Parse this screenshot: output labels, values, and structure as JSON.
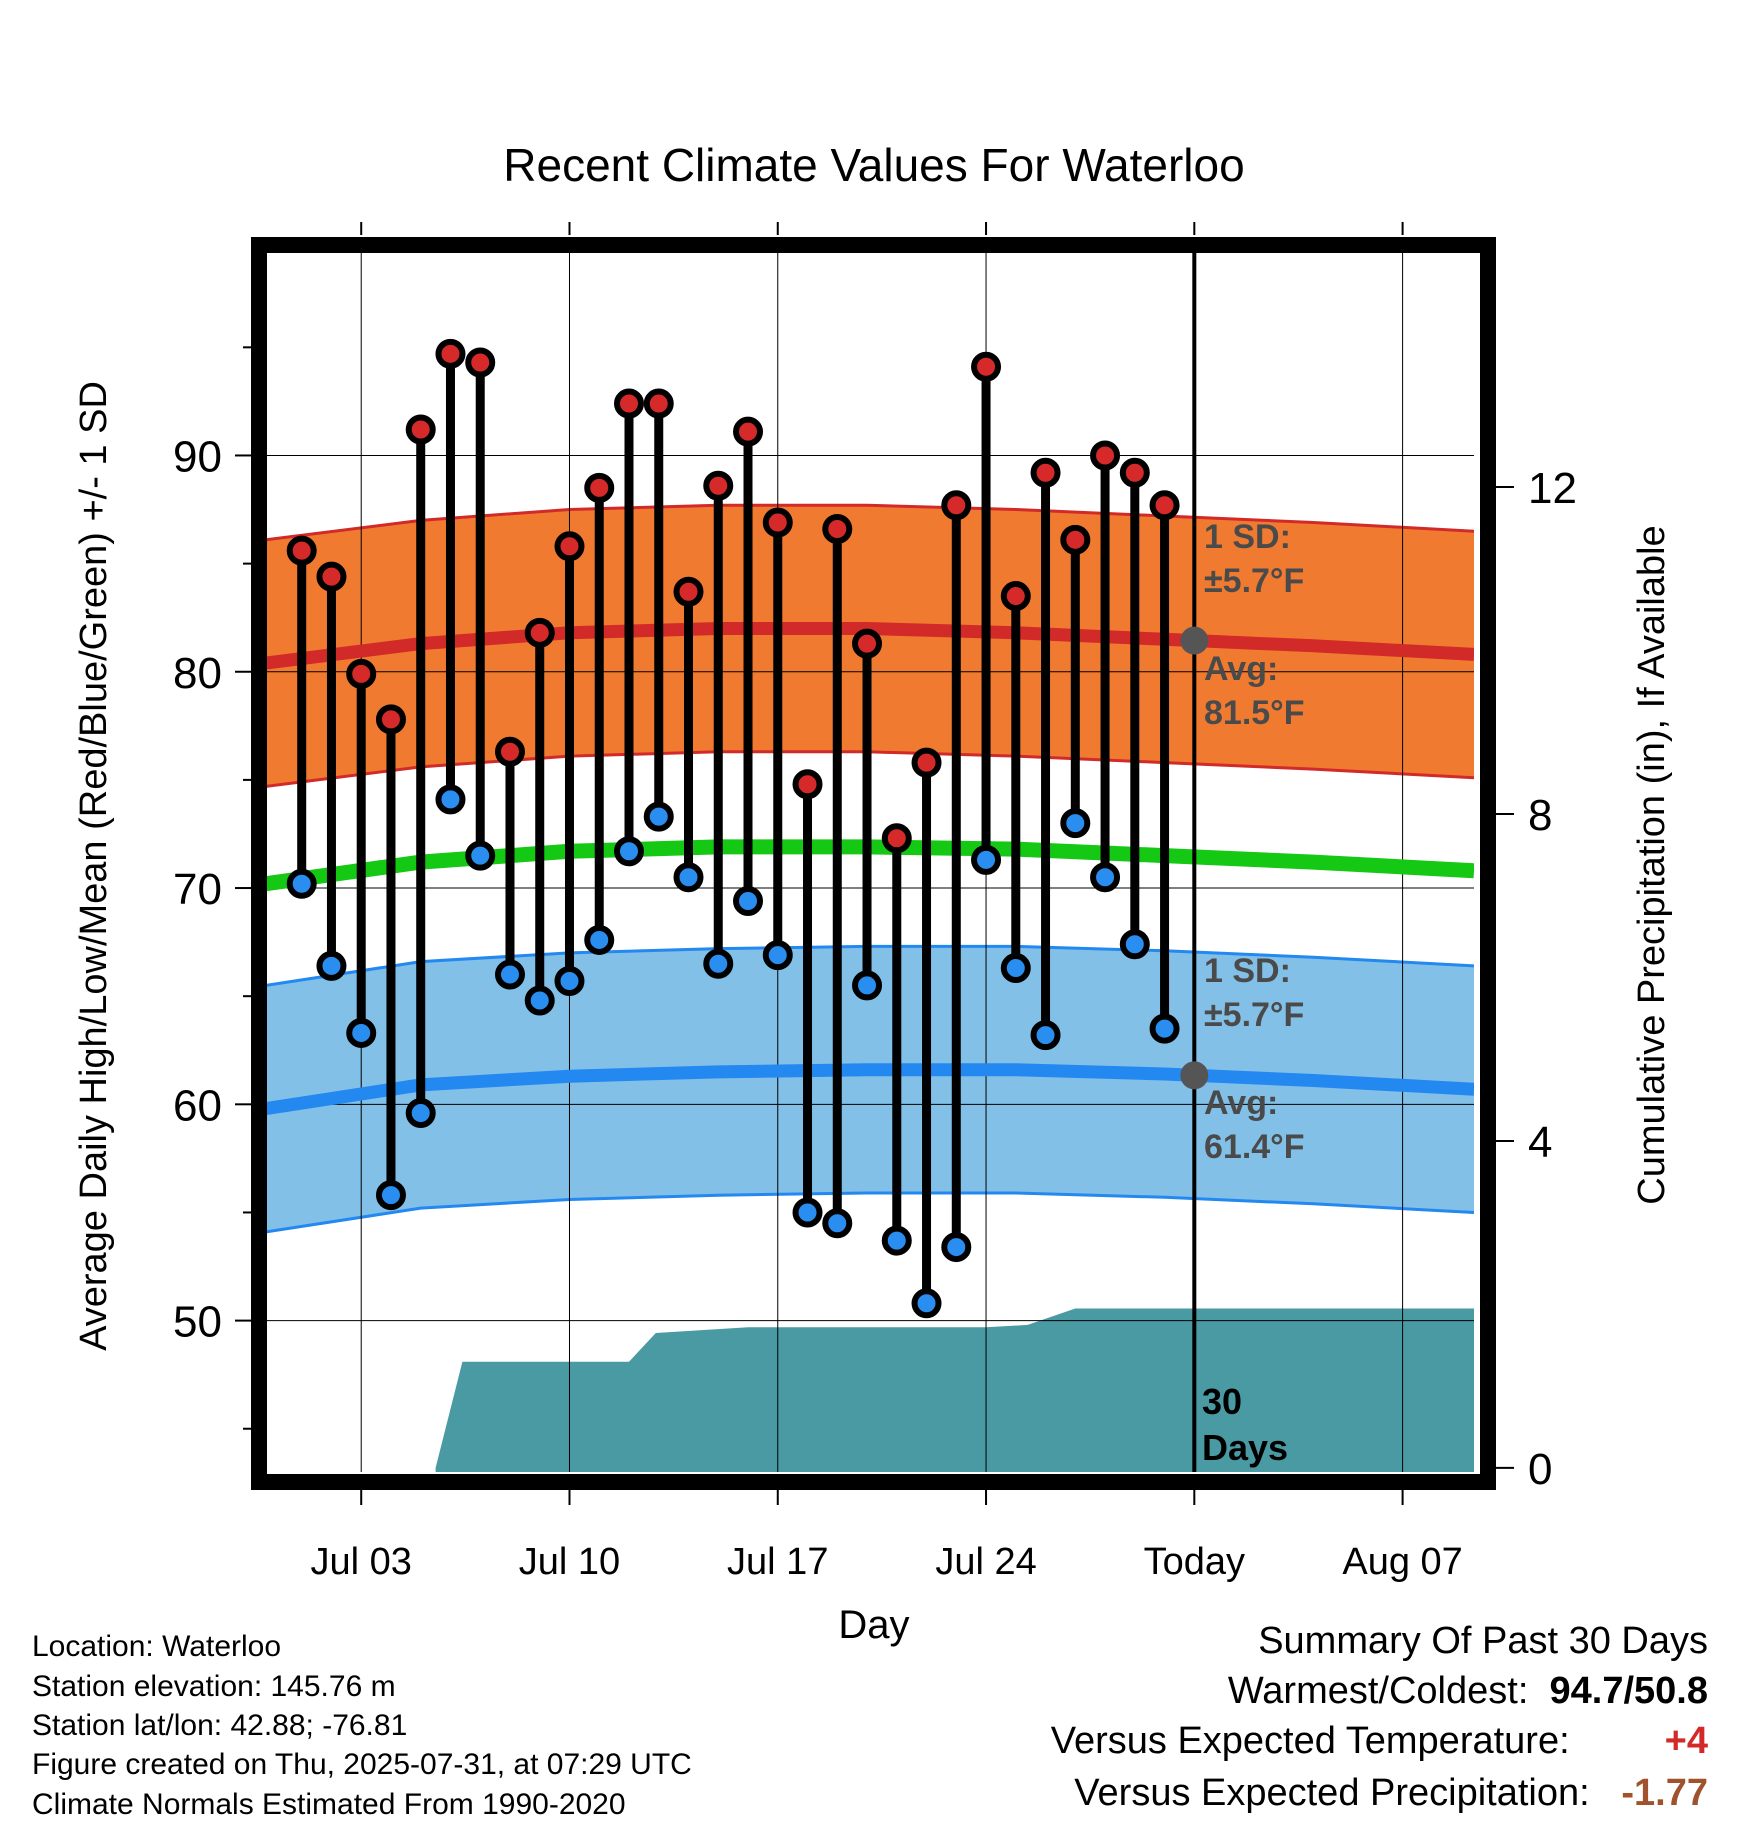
{
  "title": "Recent Climate Values For Waterloo",
  "chart_data": {
    "type": "line",
    "title": "Recent Climate Values For Waterloo",
    "xlabel": "Day",
    "ylabel_left": "Average Daily High/Low/Mean (Red/Blue/Green) +/- 1 SD",
    "ylabel_right": "Cumulative Precipitation (in), If Available",
    "x_tick_labels": [
      "Jul 03",
      "Jul 10",
      "Jul 17",
      "Jul 24",
      "Today",
      "Aug 07"
    ],
    "x_tick_days": [
      3,
      10,
      17,
      24,
      31,
      38
    ],
    "x_range_days": [
      -0.2,
      40.4
    ],
    "today_day": 31,
    "y_left_range": [
      43,
      99.5
    ],
    "y_left_ticks": [
      50,
      60,
      70,
      80,
      90
    ],
    "y_left_minor_ticks": [
      45,
      55,
      65,
      75,
      85,
      95
    ],
    "y_right_range": [
      -0.05,
      14.9
    ],
    "y_right_ticks": [
      0,
      4,
      8,
      12
    ],
    "grid": true,
    "days": [
      1,
      2,
      3,
      4,
      5,
      6,
      7,
      8,
      9,
      10,
      11,
      12,
      13,
      14,
      15,
      16,
      17,
      18,
      19,
      20,
      21,
      22,
      23,
      24,
      25,
      26,
      27,
      28,
      29,
      30
    ],
    "daily_high": [
      85.6,
      84.4,
      79.9,
      77.8,
      91.2,
      94.7,
      94.3,
      76.3,
      81.8,
      85.8,
      88.5,
      92.4,
      92.4,
      83.7,
      88.6,
      91.1,
      86.9,
      74.8,
      86.6,
      81.3,
      72.3,
      75.8,
      87.7,
      94.1,
      83.5,
      89.2,
      86.1,
      90.0,
      89.2,
      87.7
    ],
    "daily_low": [
      70.2,
      66.4,
      63.3,
      55.8,
      59.6,
      74.1,
      71.5,
      66.0,
      64.8,
      65.7,
      67.6,
      71.7,
      73.3,
      70.5,
      66.5,
      69.4,
      66.9,
      55.0,
      54.5,
      65.5,
      53.7,
      50.8,
      53.4,
      71.3,
      66.3,
      63.2,
      73.0,
      70.5,
      67.4,
      63.5
    ],
    "normal_days": [
      -0.2,
      5,
      10,
      15,
      20,
      25,
      30,
      35,
      40.4
    ],
    "normal_high": [
      80.4,
      81.3,
      81.8,
      82.0,
      82.0,
      81.8,
      81.5,
      81.2,
      80.8
    ],
    "normal_mean": [
      70.2,
      71.2,
      71.7,
      71.9,
      71.9,
      71.8,
      71.5,
      71.2,
      70.8
    ],
    "normal_low": [
      59.8,
      60.9,
      61.3,
      61.5,
      61.6,
      61.6,
      61.4,
      61.1,
      60.7
    ],
    "sd_high": 5.7,
    "sd_low": 5.7,
    "precip_days": [
      5.5,
      6.4,
      7,
      12,
      12.9,
      16,
      24,
      25.4,
      27,
      40.4
    ],
    "precip_cum": [
      0,
      1.3,
      1.3,
      1.3,
      1.65,
      1.72,
      1.72,
      1.75,
      1.95,
      1.95
    ],
    "annotations": {
      "high_sd_l1": "1 SD:",
      "high_sd_l2": "±5.7°F",
      "high_avg_l1": "Avg:",
      "high_avg_l2": "81.5°F",
      "low_sd_l1": "1 SD:",
      "low_sd_l2": "±5.7°F",
      "low_avg_l1": "Avg:",
      "low_avg_l2": "61.4°F",
      "precip_l1": "30",
      "precip_l2": "Days"
    },
    "colors": {
      "high_band": "#f07b30",
      "high_line": "#d22a28",
      "low_band": "#82c0e8",
      "low_line": "#2388f0",
      "mean_line": "#14c814",
      "precip": "#4a9aa4",
      "high_dot": "#d62a2a",
      "low_dot": "#2a8ef0",
      "annotation": "#4a4a4a",
      "today_dot": "#555555"
    }
  },
  "info": {
    "location": "Location: Waterloo",
    "elevation": "Station elevation: 145.76 m",
    "latlon": "Station lat/lon: 42.88; -76.81",
    "created": "Figure created on Thu, 2025-07-31, at 07:29 UTC",
    "normals": "Climate Normals Estimated From 1990-2020"
  },
  "summary": {
    "heading": "Summary Of Past 30 Days",
    "warmest_label": "Warmest/Coldest:",
    "warmest_value": "94.7/50.8",
    "temp_label": "Versus Expected Temperature:",
    "temp_value": "+4",
    "temp_color": "#d22a28",
    "precip_label": "Versus Expected Precipitation:",
    "precip_value": "-1.77",
    "precip_color": "#a0522d"
  }
}
